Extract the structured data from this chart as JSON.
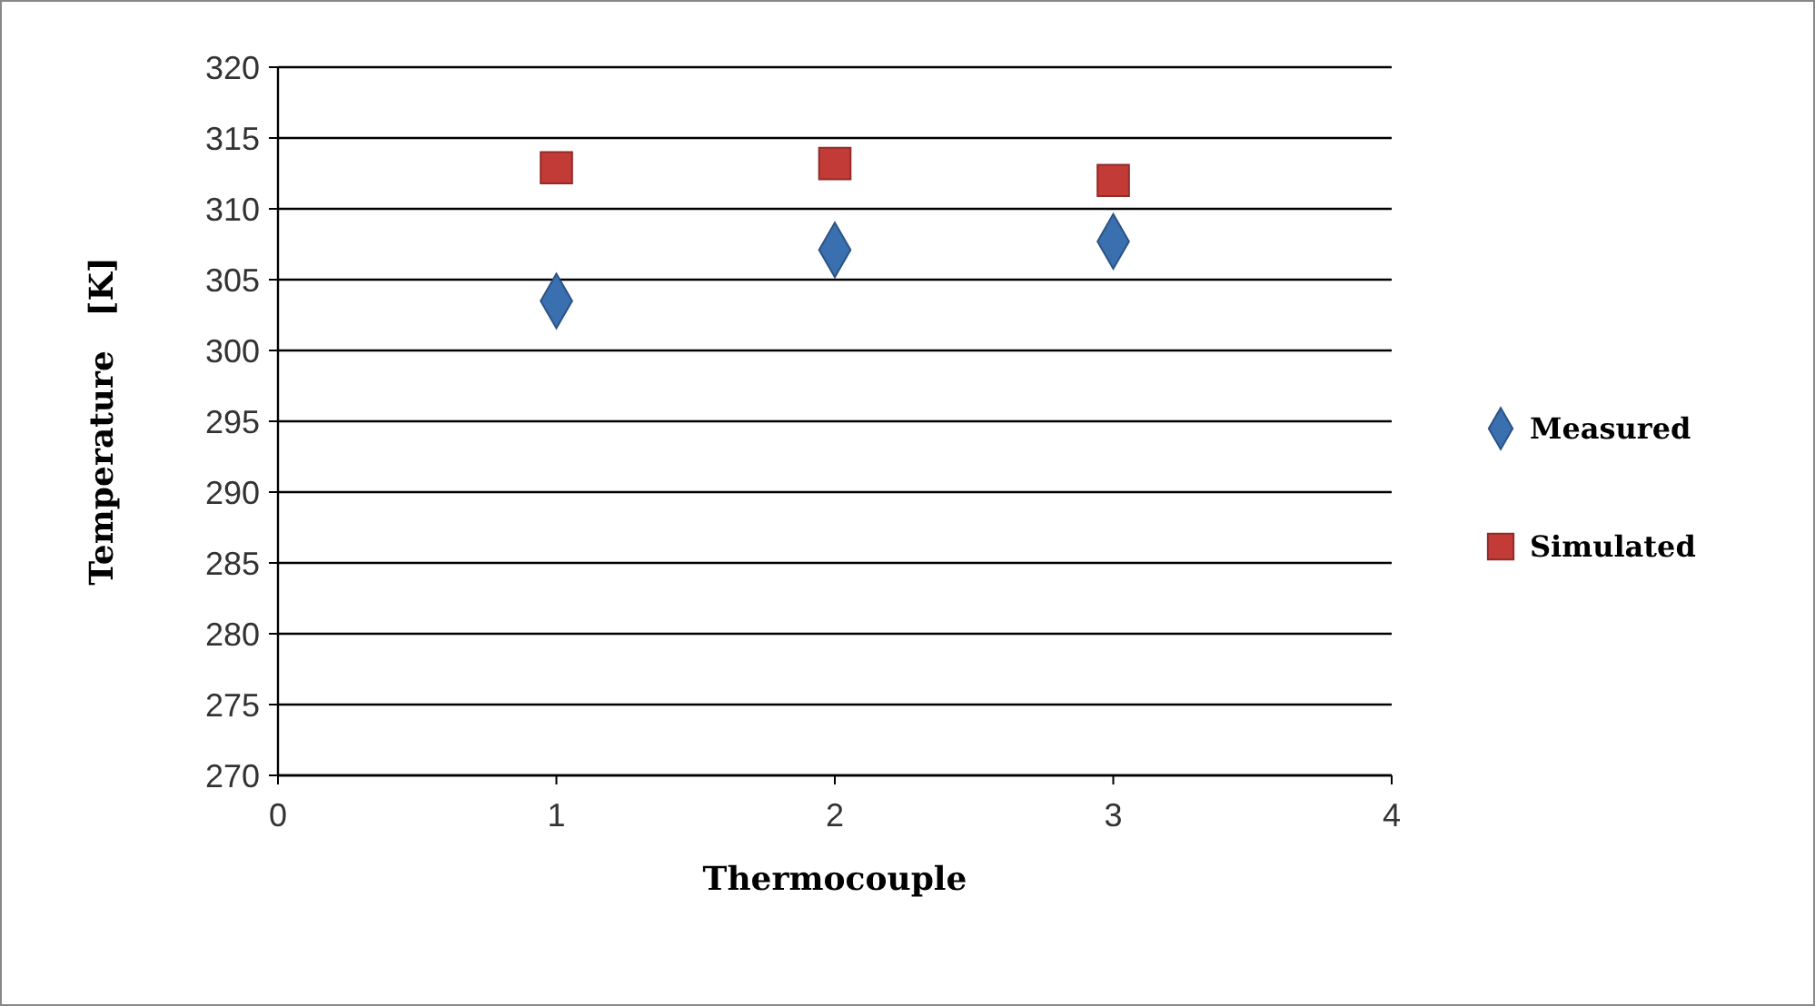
{
  "chart_data": {
    "type": "scatter",
    "xlabel": "Thermocouple",
    "ylabel": "Temperature   [K]",
    "x": [
      1,
      2,
      3
    ],
    "series": [
      {
        "name": "Measured",
        "color": "#3a6fb0",
        "marker": "diamond",
        "values": [
          303.5,
          307.1,
          307.7
        ]
      },
      {
        "name": "Simulated",
        "color": "#c23b37",
        "marker": "square",
        "values": [
          312.9,
          313.2,
          312.0
        ]
      }
    ],
    "xlim": [
      0,
      4
    ],
    "xticks": [
      0,
      1,
      2,
      3,
      4
    ],
    "ylim": [
      270,
      320
    ],
    "yticks": [
      270,
      275,
      280,
      285,
      290,
      295,
      300,
      305,
      310,
      315,
      320
    ],
    "grid": "y",
    "legend": "right"
  }
}
